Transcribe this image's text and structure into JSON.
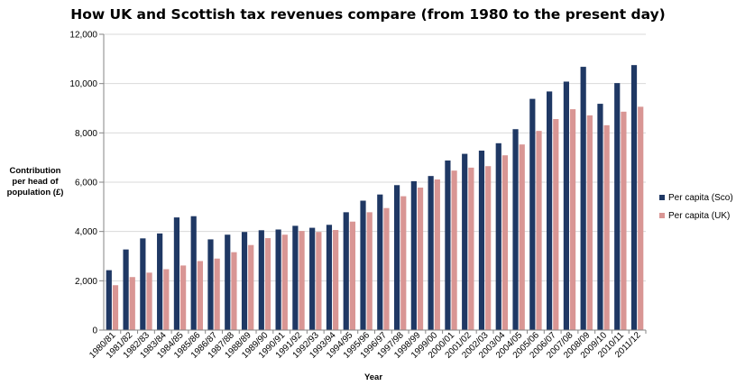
{
  "chart_data": {
    "type": "bar",
    "title": "How UK and Scottish tax revenues compare (from 1980 to the present day)",
    "xlabel": "Year",
    "ylabel": [
      "Contribution",
      "per head of",
      "population (£)"
    ],
    "ylim": [
      0,
      12000
    ],
    "yticks": [
      0,
      2000,
      4000,
      6000,
      8000,
      10000,
      12000
    ],
    "ytick_labels": [
      "0",
      "2,000",
      "4,000",
      "6,000",
      "8,000",
      "10,000",
      "12,000"
    ],
    "grid": true,
    "legend_position": "right",
    "categories": [
      "1980/81",
      "1981/82",
      "1982/83",
      "1983/84",
      "1984/85",
      "1985/86",
      "1986/87",
      "1987/88",
      "1988/89",
      "1989/90",
      "1990/91",
      "1991/92",
      "1992/93",
      "1993/94",
      "1994/95",
      "1995/96",
      "1996/97",
      "1997/98",
      "1998/99",
      "1999/00",
      "2000/01",
      "2001/02",
      "2002/03",
      "2003/04",
      "2004/05",
      "2005/06",
      "2006/07",
      "2007/08",
      "2008/09",
      "2009/10",
      "2010/11",
      "2011/12"
    ],
    "series": [
      {
        "name": "Per capita (Sco)",
        "color": "#1f3864",
        "values": [
          2430,
          3270,
          3720,
          3920,
          4570,
          4620,
          3680,
          3870,
          3980,
          4050,
          4080,
          4230,
          4150,
          4270,
          4780,
          5250,
          5500,
          5880,
          6040,
          6250,
          6880,
          7150,
          7280,
          7580,
          8150,
          9380,
          9680,
          10080,
          10680,
          9180,
          10020,
          10750
        ]
      },
      {
        "name": "Per capita (UK)",
        "color": "#d99694",
        "values": [
          1820,
          2150,
          2330,
          2470,
          2620,
          2800,
          2900,
          3160,
          3450,
          3730,
          3870,
          4020,
          3980,
          4060,
          4400,
          4780,
          4950,
          5430,
          5780,
          6110,
          6470,
          6590,
          6650,
          7090,
          7530,
          8080,
          8560,
          8960,
          8710,
          8310,
          8860,
          9060
        ]
      }
    ]
  }
}
